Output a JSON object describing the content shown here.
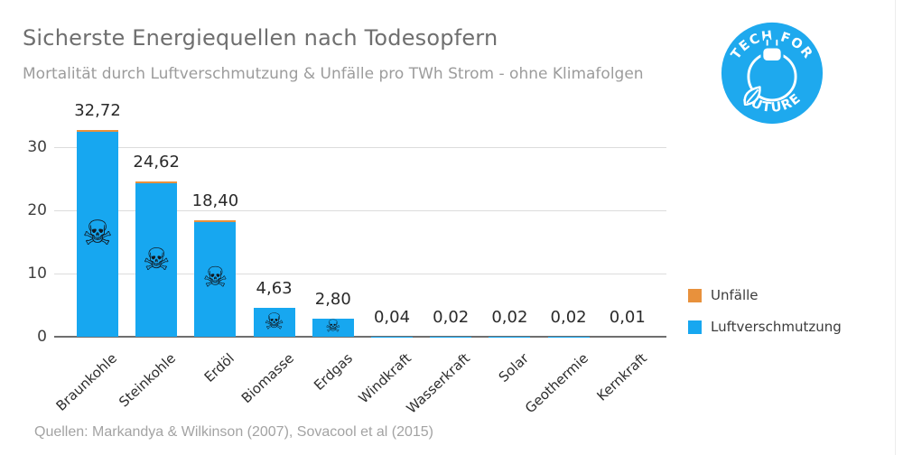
{
  "header": {
    "title": "Sicherste Energiequellen nach Todesopfern",
    "subtitle": "Mortalität durch Luftverschmutzung & Unfälle pro TWh Strom - ohne Klimafolgen"
  },
  "logo": {
    "top_text": "TECH FOR",
    "bottom_text": "FUTURE",
    "icon": "plug-and-leaf-icon",
    "color": "#1ea9ee"
  },
  "legend": {
    "items": [
      {
        "label": "Unfälle",
        "color": "#e8913c"
      },
      {
        "label": "Luftverschmutzung",
        "color": "#17a7f0"
      }
    ]
  },
  "footer": {
    "source": "Quellen: Markandya & Wilkinson (2007), Sovacool et al (2015)"
  },
  "chart_data": {
    "type": "bar",
    "stacked": true,
    "categories": [
      "Braunkohle",
      "Steinkohle",
      "Erdöl",
      "Biomasse",
      "Erdgas",
      "Windkraft",
      "Wasserkraft",
      "Solar",
      "Geothermie",
      "Kernkraft"
    ],
    "series": [
      {
        "name": "Luftverschmutzung",
        "color": "#17a7f0",
        "values": [
          32.72,
          24.62,
          18.4,
          4.63,
          2.8,
          0.04,
          0.02,
          0.02,
          0.02,
          0.01
        ]
      },
      {
        "name": "Unfälle",
        "color": "#e8913c",
        "note": "individual values not labeled in chart; visible only as thin caps on the three tallest bars"
      }
    ],
    "value_labels": [
      "32,72",
      "24,62",
      "18,40",
      "4,63",
      "2,80",
      "0,04",
      "0,02",
      "0,02",
      "0,02",
      "0,01"
    ],
    "xlabel": "",
    "ylabel": "",
    "ylim": [
      0,
      35
    ],
    "yticks": [
      0,
      10,
      20,
      30
    ],
    "grid": "horizontal",
    "legend_position": "right",
    "decimal_style": "comma",
    "skull_overlay": {
      "glyph": "☠",
      "shown_on": [
        "Braunkohle",
        "Steinkohle",
        "Erdöl",
        "Biomasse",
        "Erdgas"
      ]
    }
  }
}
